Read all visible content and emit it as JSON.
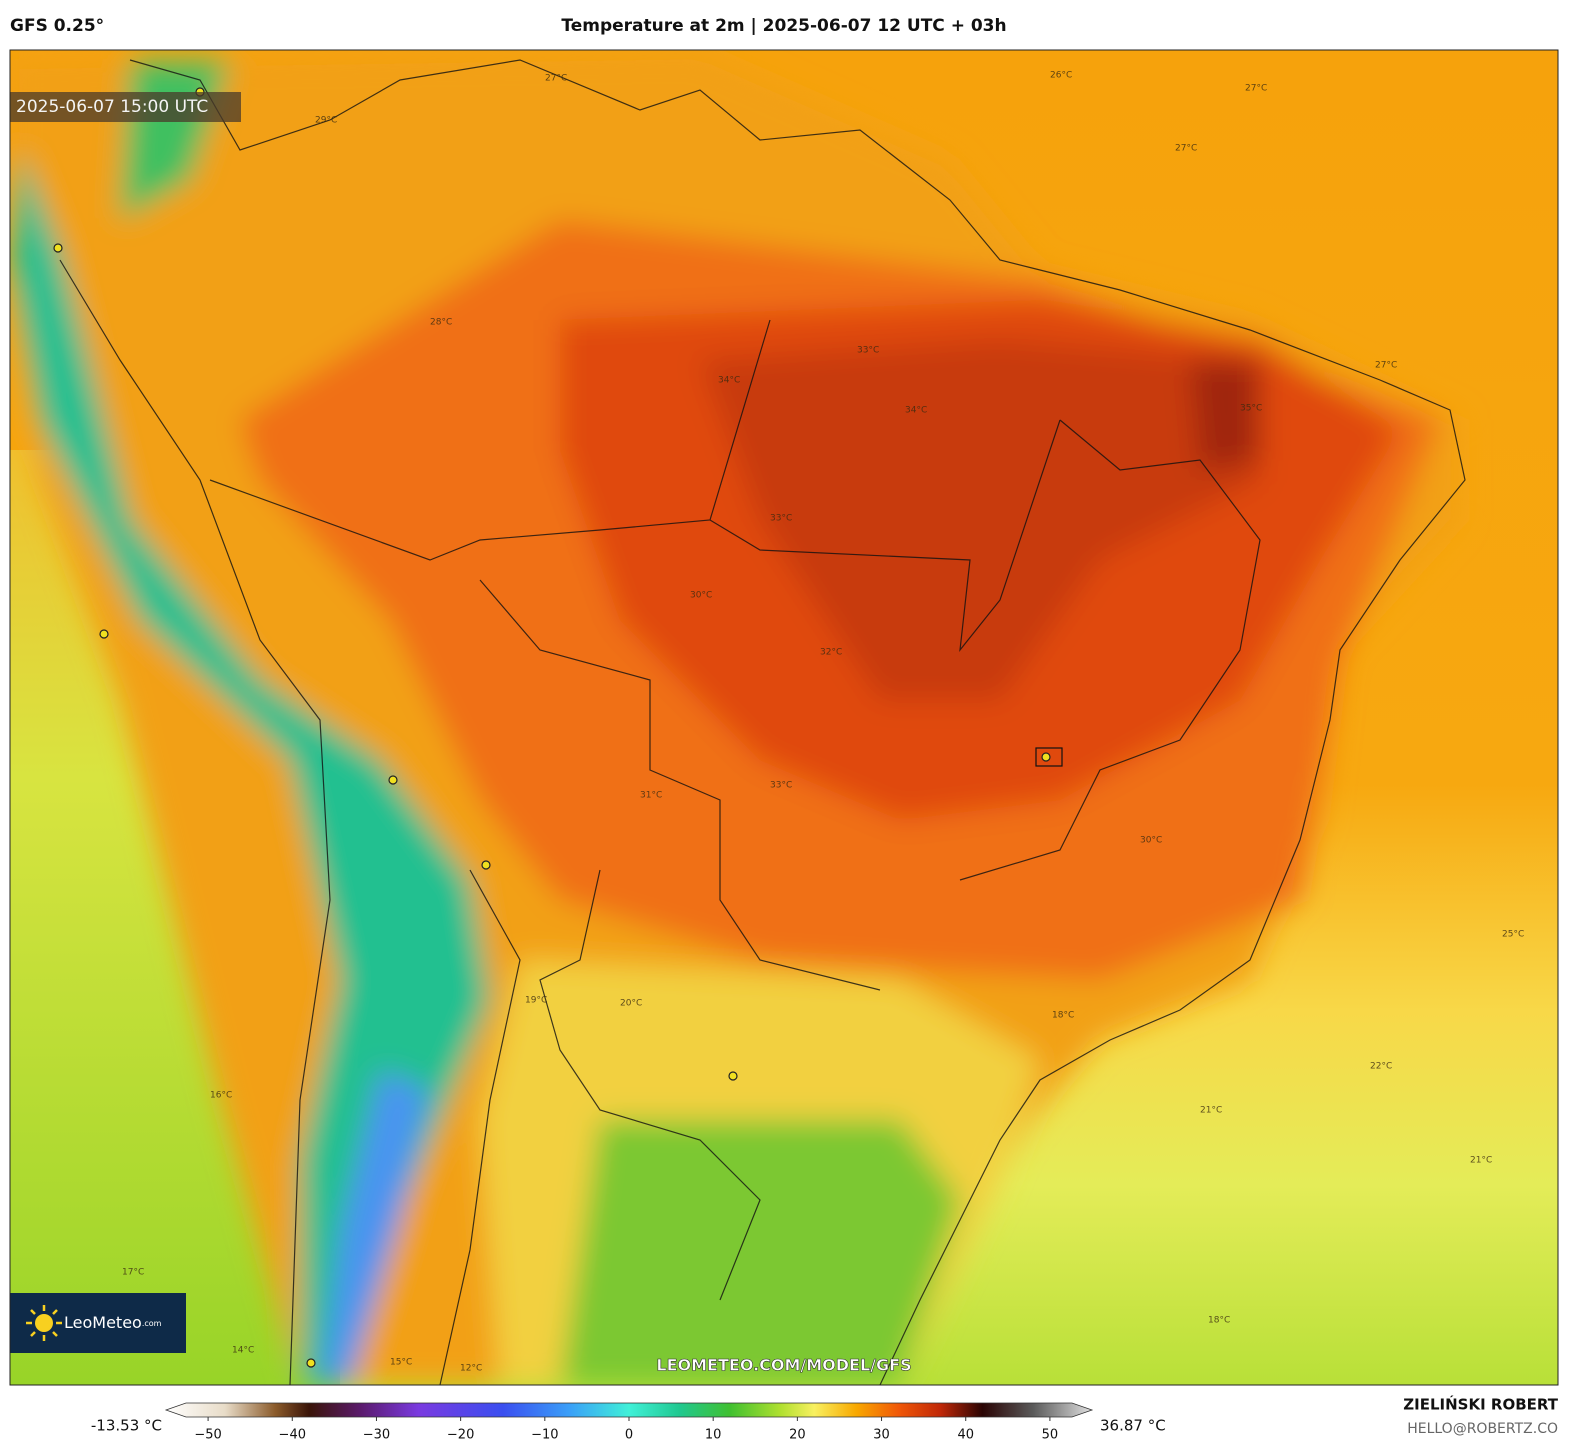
{
  "header": {
    "model": "GFS 0.25°",
    "title": "Temperature at 2m | 2025-06-07 12 UTC + 03h"
  },
  "map": {
    "timestamp": "2025-06-07 15:00 UTC",
    "watermark": "LEOMETEO.COM/MODEL/GFS",
    "logo": {
      "name": "LeoMeteo",
      "suffix": ".com"
    },
    "contour_labels": [
      "27°C",
      "26°C",
      "27°C",
      "27°C",
      "29°C",
      "28°C",
      "34°C",
      "33°C",
      "34°C",
      "33°C",
      "35°C",
      "27°C",
      "30°C",
      "32°C",
      "33°C",
      "31°C",
      "30°C",
      "25°C",
      "22°C",
      "21°C",
      "21°C",
      "18°C",
      "19°C",
      "16°C",
      "17°C",
      "14°C",
      "15°C",
      "12°C",
      "18°C",
      "20°C"
    ]
  },
  "colorbar": {
    "min_label": "-13.53 °C",
    "max_label": "36.87 °C",
    "xlim": [
      -55,
      55
    ],
    "ticks": [
      {
        "value": -50,
        "label": "−50"
      },
      {
        "value": -40,
        "label": "−40"
      },
      {
        "value": -30,
        "label": "−30"
      },
      {
        "value": -20,
        "label": "−20"
      },
      {
        "value": -10,
        "label": "−10"
      },
      0,
      10,
      20,
      30,
      40,
      50
    ],
    "stops": [
      {
        "value": -55,
        "color": "#ffffff"
      },
      {
        "value": -48,
        "color": "#e8dcc8"
      },
      {
        "value": -42,
        "color": "#8a5a2a"
      },
      {
        "value": -38,
        "color": "#3a1408"
      },
      {
        "value": -32,
        "color": "#5a1a6a"
      },
      {
        "value": -25,
        "color": "#7a3ae0"
      },
      {
        "value": -15,
        "color": "#3a4ef0"
      },
      {
        "value": -7,
        "color": "#3aa0f8"
      },
      {
        "value": 0,
        "color": "#40f0d8"
      },
      {
        "value": 6,
        "color": "#20c890"
      },
      {
        "value": 12,
        "color": "#40c030"
      },
      {
        "value": 18,
        "color": "#b0e030"
      },
      {
        "value": 22,
        "color": "#f8f060"
      },
      {
        "value": 27,
        "color": "#f8a800"
      },
      {
        "value": 32,
        "color": "#f05808"
      },
      {
        "value": 37,
        "color": "#c02808"
      },
      {
        "value": 42,
        "color": "#2a0404"
      },
      {
        "value": 48,
        "color": "#5a5a5a"
      },
      {
        "value": 55,
        "color": "#e0e0e0"
      }
    ]
  },
  "credits": {
    "author": "ZIELIŃSKI ROBERT",
    "email": "HELLO@ROBERTZ.CO"
  }
}
